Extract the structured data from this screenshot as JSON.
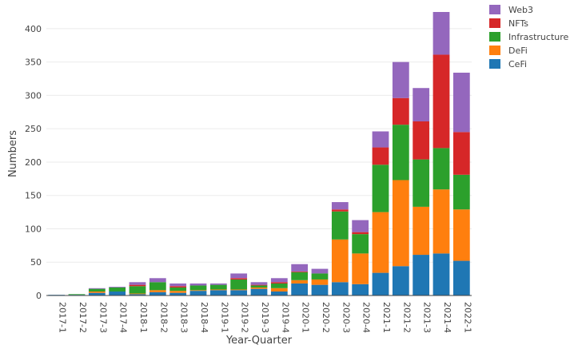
{
  "chart_data": {
    "type": "bar",
    "stacked": true,
    "title": "",
    "xlabel": "Year-Quarter",
    "ylabel": "Numbers",
    "ylim": [
      0,
      425
    ],
    "yticks": [
      0,
      50,
      100,
      150,
      200,
      250,
      300,
      350,
      400
    ],
    "grid": true,
    "legend_position": "top-right",
    "categories": [
      "2017-1",
      "2017-2",
      "2017-3",
      "2017-4",
      "2018-1",
      "2018-2",
      "2018-3",
      "2018-4",
      "2019-1",
      "2019-2",
      "2019-3",
      "2019-4",
      "2020-1",
      "2020-2",
      "2020-3",
      "2020-4",
      "2021-1",
      "2021-2",
      "2021-3",
      "2021-4",
      "2022-1"
    ],
    "series": [
      {
        "name": "CeFi",
        "color": "#1f77b4",
        "values": [
          1,
          1,
          4,
          6,
          2,
          5,
          4,
          7,
          8,
          8,
          10,
          6,
          18,
          16,
          20,
          17,
          34,
          44,
          61,
          63,
          52
        ]
      },
      {
        "name": "DeFi",
        "color": "#ff7f0e",
        "values": [
          0,
          0,
          2,
          0,
          1,
          3,
          3,
          1,
          1,
          1,
          2,
          5,
          5,
          8,
          64,
          46,
          91,
          129,
          72,
          96,
          77
        ]
      },
      {
        "name": "Infrastructure",
        "color": "#2ca02c",
        "values": [
          0,
          1,
          4,
          6,
          11,
          12,
          5,
          7,
          7,
          15,
          3,
          7,
          12,
          9,
          42,
          29,
          71,
          83,
          71,
          62,
          52
        ]
      },
      {
        "name": "NFTs",
        "color": "#d62728",
        "values": [
          0,
          0,
          0,
          0,
          2,
          0,
          2,
          0,
          0,
          2,
          1,
          2,
          1,
          0,
          3,
          3,
          26,
          40,
          57,
          140,
          64
        ]
      },
      {
        "name": "Web3",
        "color": "#9467bd",
        "values": [
          0,
          0,
          1,
          1,
          4,
          6,
          4,
          3,
          2,
          7,
          4,
          6,
          11,
          7,
          11,
          18,
          24,
          54,
          50,
          64,
          89
        ]
      }
    ],
    "legend_order": [
      "Web3",
      "NFTs",
      "Infrastructure",
      "DeFi",
      "CeFi"
    ]
  }
}
